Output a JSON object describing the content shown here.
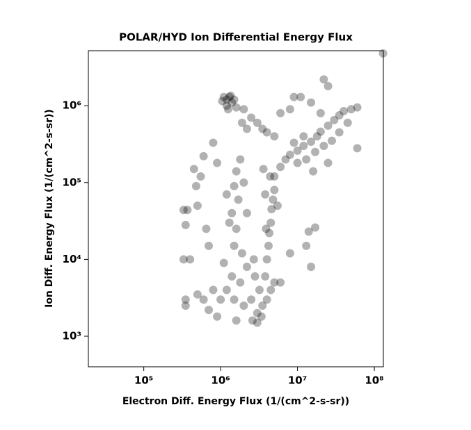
{
  "chart_data": {
    "type": "scatter",
    "title": "POLAR/HYD  Ion Differential Energy Flux",
    "x_label": "Electron Diff. Energy Flux (1/(cm^2-s-sr))",
    "y_label": "Ion Diff. Energy Flux (1/(cm^2-s-sr))",
    "x_scale": "log",
    "y_scale": "log",
    "xlim": [
      19000,
      131000000
    ],
    "ylim": [
      400,
      5200000
    ],
    "xticks": [
      {
        "value": 100000,
        "label": "10⁵"
      },
      {
        "value": 1000000,
        "label": "10⁶"
      },
      {
        "value": 10000000,
        "label": "10⁷"
      },
      {
        "value": 100000000,
        "label": "10⁸"
      }
    ],
    "yticks": [
      {
        "value": 1000,
        "label": "10³"
      },
      {
        "value": 10000,
        "label": "10⁴"
      },
      {
        "value": 100000,
        "label": "10⁵"
      },
      {
        "value": 1000000,
        "label": "10⁶"
      }
    ],
    "color": "#000000",
    "series": [
      {
        "name": "Ion Differential Energy Flux",
        "x": [
          1100000.0,
          1200000.0,
          1300000.0,
          1400000.0,
          1200000.0,
          1500000.0,
          1250000.0,
          1350000.0,
          1050000.0,
          1600000.0,
          2000000.0,
          2500000.0,
          3000000.0,
          3500000.0,
          4000000.0,
          5000000.0,
          1900000.0,
          2200000.0,
          8000000.0,
          9000000.0,
          6000000.0,
          11000000.0,
          15000000.0,
          22000000.0,
          25000000.0,
          130000000.0,
          20000000.0,
          60000000.0,
          14000000.0,
          17000000.0,
          13000000.0,
          15000000.0,
          8000000.0,
          6000000.0,
          5000000.0,
          6000000.0,
          7000000.0,
          8000000.0,
          10000000.0,
          12000000.0,
          15000000.0,
          18000000.0,
          20000000.0,
          25000000.0,
          30000000.0,
          35000000.0,
          40000000.0,
          50000000.0,
          60000000.0,
          10000000.0,
          13000000.0,
          17000000.0,
          22000000.0,
          28000000.0,
          35000000.0,
          45000000.0,
          9000000.0,
          12000000.0,
          16000000.0,
          25000000.0,
          4000000.0,
          4200000.0,
          4300000.0,
          4500000.0,
          4600000.0,
          4800000.0,
          5000000.0,
          4400000.0,
          3800000.0,
          3600000.0,
          5500000.0,
          3900000.0,
          1500000.0,
          1600000.0,
          1400000.0,
          1700000.0,
          1500000.0,
          1600000.0,
          1800000.0,
          1300000.0,
          2000000.0,
          2200000.0,
          1200000.0,
          330000.0,
          370000.0,
          350000.0,
          480000.0,
          550000.0,
          600000.0,
          800000.0,
          500000.0,
          650000.0,
          400000.0,
          330000.0,
          700000.0,
          450000.0,
          900000.0,
          1000000.0,
          1200000.0,
          1500000.0,
          1800000.0,
          2000000.0,
          2500000.0,
          3000000.0,
          3500000.0,
          2800000.0,
          3200000.0,
          2200000.0,
          1400000.0,
          800000.0,
          600000.0,
          500000.0,
          350000.0,
          350000.0,
          700000.0,
          900000.0,
          2600000.0,
          3000000.0,
          3400000.0,
          1600000.0,
          4000000.0,
          4500000.0,
          3800000.0,
          2700000.0,
          1900000.0,
          1100000.0,
          5000000.0
        ],
        "values": [
          1300000.0,
          1200000.0,
          1300000.0,
          1100000.0,
          1000000.0,
          1200000.0,
          900000.0,
          1350000.0,
          1150000.0,
          950000.0,
          900000.0,
          700000.0,
          600000.0,
          500000.0,
          450000.0,
          400000.0,
          600000.0,
          500000.0,
          900000.0,
          1300000.0,
          800000.0,
          1300000.0,
          1100000.0,
          2200000.0,
          1800000.0,
          4800000.0,
          800000.0,
          280000.0,
          23000.0,
          26000.0,
          15000.0,
          8000.0,
          12000.0,
          5000.0,
          120000.0,
          160000.0,
          200000.0,
          230000.0,
          260000.0,
          300000.0,
          340000.0,
          400000.0,
          460000.0,
          550000.0,
          650000.0,
          750000.0,
          850000.0,
          900000.0,
          950000.0,
          180000.0,
          200000.0,
          250000.0,
          300000.0,
          350000.0,
          450000.0,
          600000.0,
          330000.0,
          400000.0,
          140000.0,
          180000.0,
          10000.0,
          15000.0,
          22000.0,
          30000.0,
          45000.0,
          60000.0,
          80000.0,
          120000.0,
          70000.0,
          150000.0,
          50000.0,
          25000.0,
          15000.0,
          25000.0,
          40000.0,
          60000.0,
          90000.0,
          140000.0,
          200000.0,
          30000.0,
          100000.0,
          40000.0,
          70000.0,
          44000.0,
          44000.0,
          28000.0,
          90000.0,
          120000.0,
          220000.0,
          330000.0,
          50000.0,
          25000.0,
          10000.0,
          10000.0,
          15000.0,
          150000.0,
          180000.0,
          3000.0,
          4000.0,
          3000.0,
          5000.0,
          2500.0,
          3000.0,
          2000.0,
          2500.0,
          6000.0,
          4000.0,
          8000.0,
          6000.0,
          4000.0,
          3000.0,
          3500.0,
          3000.0,
          2500.0,
          2200.0,
          1800.0,
          1600.0,
          1500.0,
          1800.0,
          1600.0,
          3000.0,
          4000.0,
          6000.0,
          10000.0,
          12000.0,
          9000.0,
          5000.0
        ]
      }
    ]
  }
}
